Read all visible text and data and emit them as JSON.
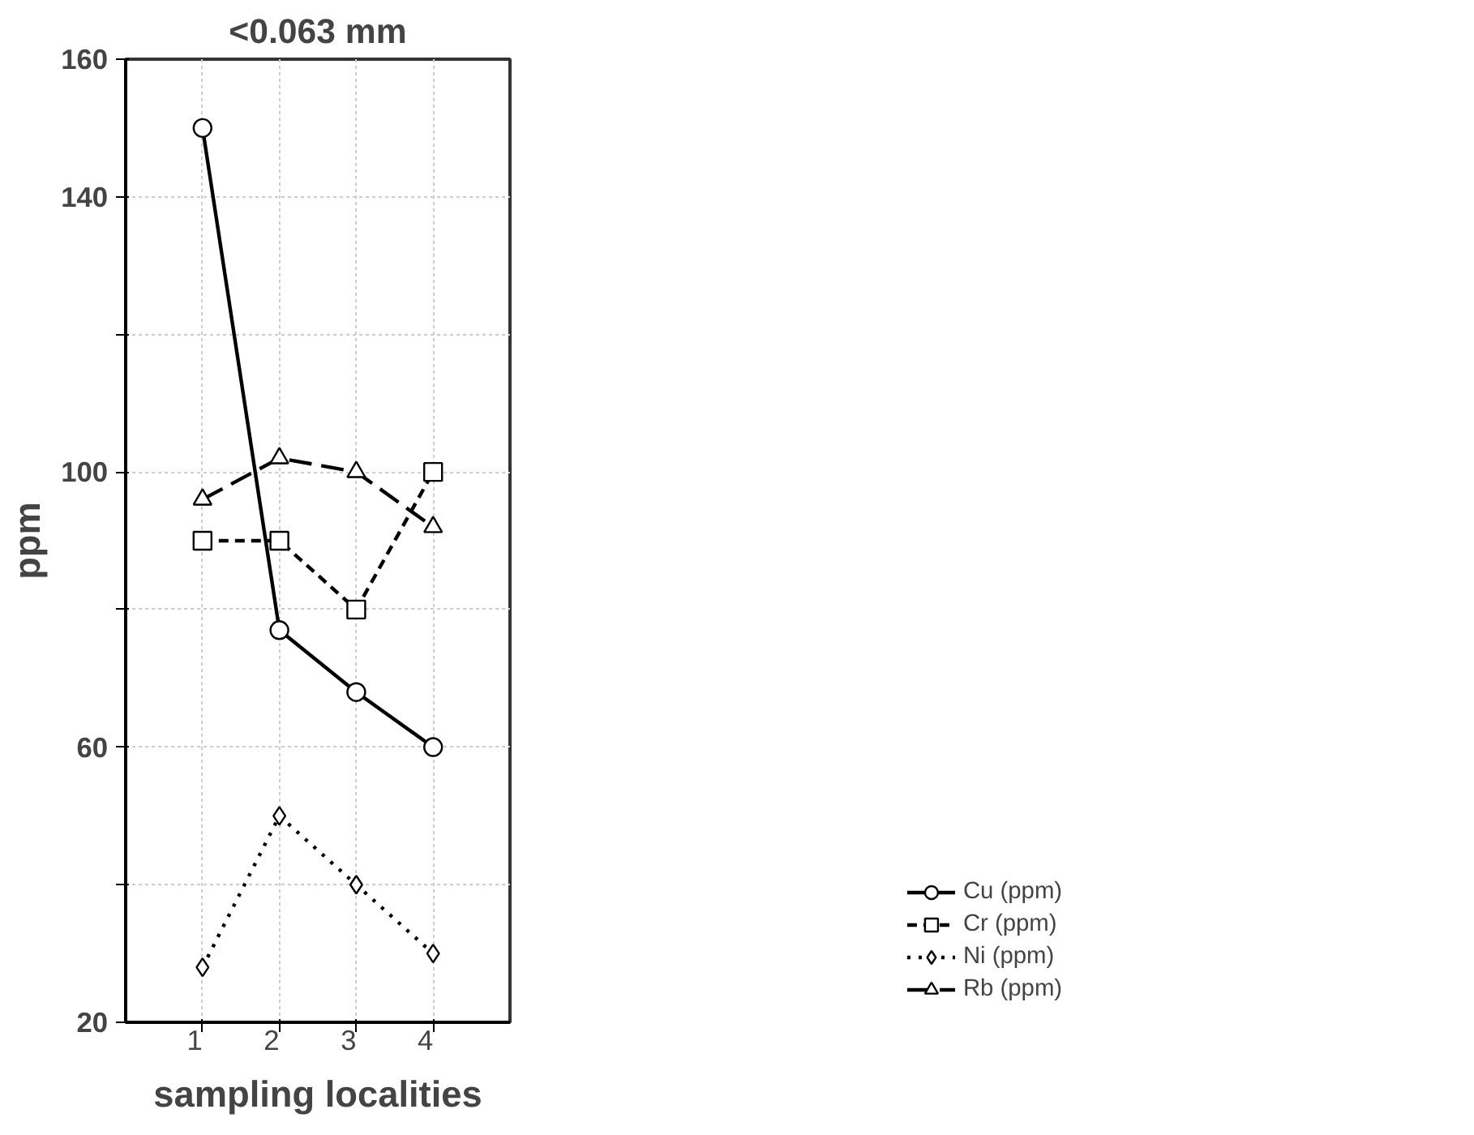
{
  "chart_data": {
    "type": "line",
    "title": "<0.063 mm",
    "xlabel": "sampling localities",
    "ylabel": "ppm",
    "x": [
      1,
      2,
      3,
      4
    ],
    "xlim": [
      0,
      5
    ],
    "xticks": [
      1,
      2,
      3,
      4
    ],
    "ylim": [
      20,
      160
    ],
    "yticks": [
      20,
      {
        "value": 40,
        "label": null
      },
      60,
      {
        "value": 80,
        "label": null
      },
      100,
      {
        "value": 120,
        "label": null
      },
      140,
      160
    ],
    "grid": true,
    "legend": "bottom right",
    "series": [
      {
        "name": "Cu (ppm)",
        "color": "#000000",
        "marker": "circle",
        "line_style": "solid",
        "values": [
          150,
          77,
          68,
          60
        ]
      },
      {
        "name": "Cr (ppm)",
        "color": "#000000",
        "marker": "square",
        "line_style": "dashed",
        "values": [
          90,
          90,
          80,
          100
        ]
      },
      {
        "name": "Ni (ppm)",
        "color": "#000000",
        "marker": "diamond",
        "line_style": "dotted",
        "values": [
          28,
          50,
          40,
          30
        ]
      },
      {
        "name": "Rb (ppm)",
        "color": "#000000",
        "marker": "triangle",
        "line_style": "longdash",
        "values": [
          96,
          102,
          100,
          92
        ]
      }
    ]
  }
}
